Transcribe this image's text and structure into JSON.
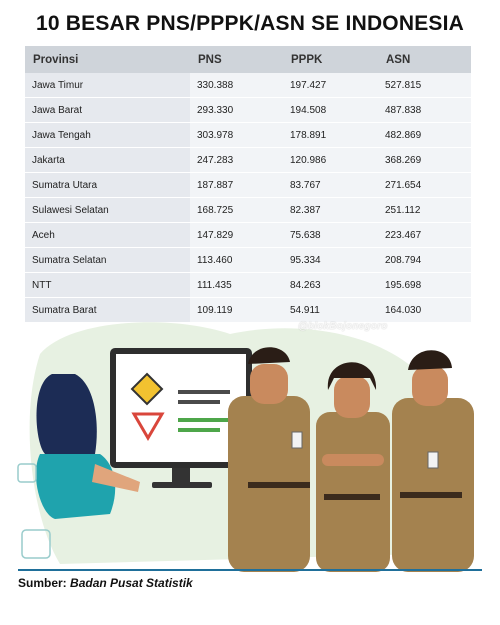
{
  "title": "10 BESAR PNS/PPPK/ASN SE INDONESIA",
  "table": {
    "headers": [
      "Provinsi",
      "PNS",
      "PPPK",
      "ASN"
    ],
    "rows": [
      [
        "Jawa Timur",
        "330.388",
        "197.427",
        "527.815"
      ],
      [
        "Jawa Barat",
        "293.330",
        "194.508",
        "487.838"
      ],
      [
        "Jawa Tengah",
        "303.978",
        "178.891",
        "482.869"
      ],
      [
        "Jakarta",
        "247.283",
        "120.986",
        "368.269"
      ],
      [
        "Sumatra Utara",
        "187.887",
        "83.767",
        "271.654"
      ],
      [
        "Sulawesi Selatan",
        "168.725",
        "82.387",
        "251.112"
      ],
      [
        "Aceh",
        "147.829",
        "75.638",
        "223.467"
      ],
      [
        "Sumatra Selatan",
        "113.460",
        "95.334",
        "208.794"
      ],
      [
        "NTT",
        "111.435",
        "84.263",
        "195.698"
      ],
      [
        "Sumatra Barat",
        "109.119",
        "54.911",
        "164.030"
      ]
    ]
  },
  "watermark": "@blokBojonegoro",
  "source": {
    "label": "Sumber:",
    "name": "Badan Pusat Statistik"
  },
  "colors": {
    "header_bg": "#cfd4da",
    "row_bg": "#e6e9ee",
    "uniform": "#a4824f",
    "accent_line": "#1f6f9a"
  }
}
